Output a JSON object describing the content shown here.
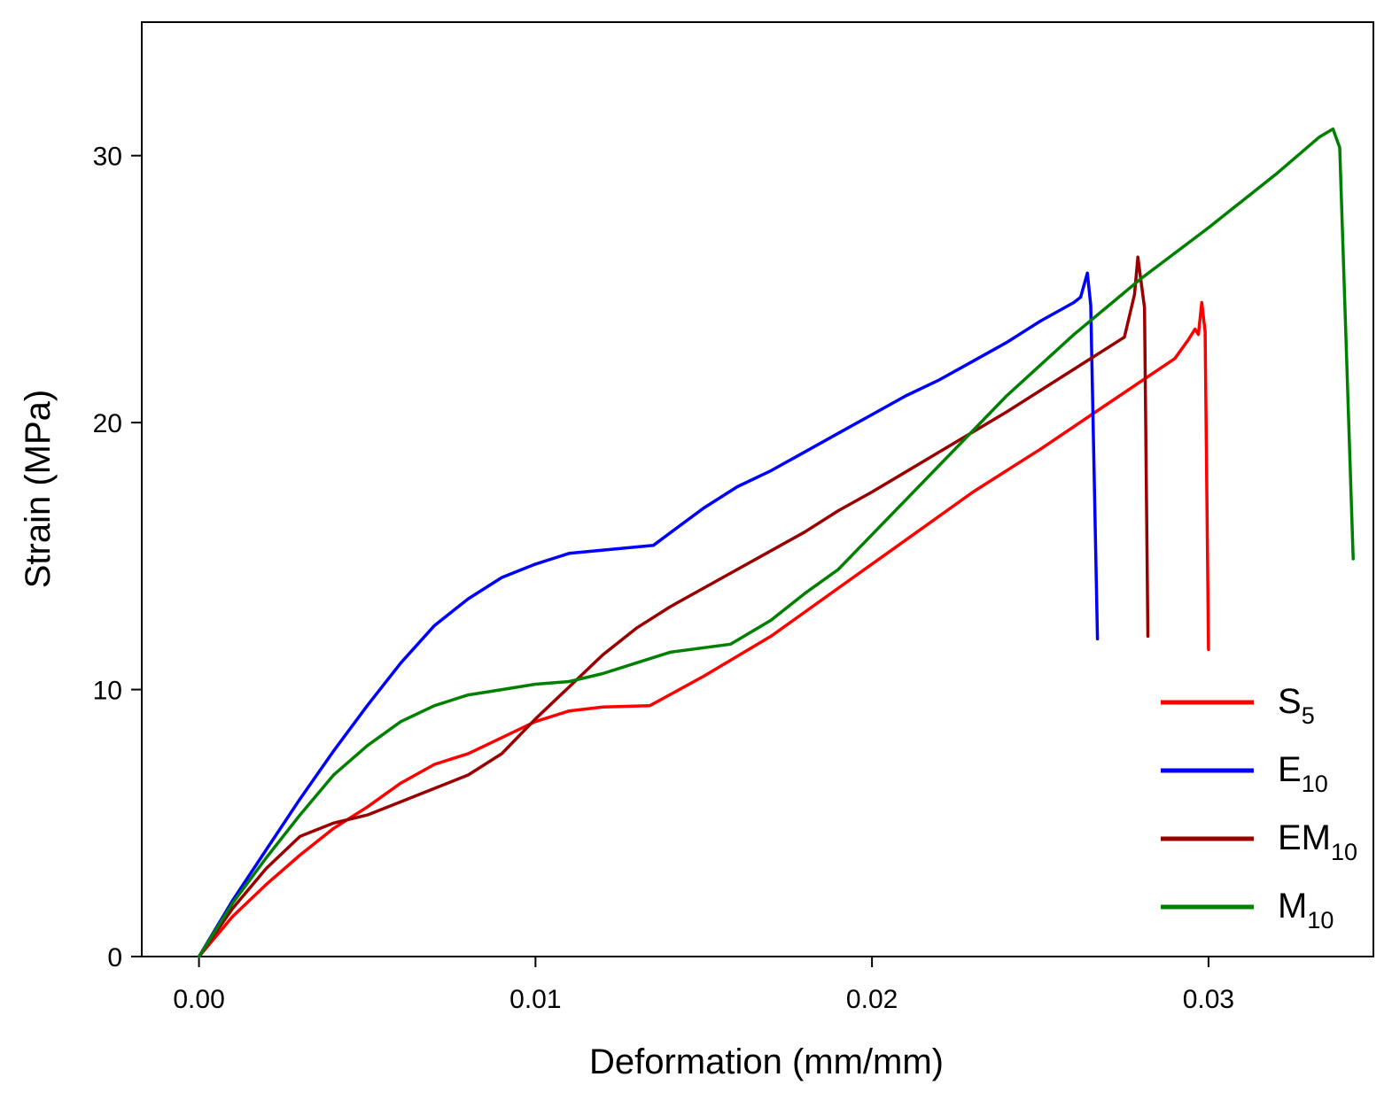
{
  "chart_data": {
    "type": "line",
    "title": "",
    "xlabel": "Deformation (mm/mm)",
    "ylabel": "Strain (MPa)",
    "xlim": [
      -0.0017,
      0.0349
    ],
    "ylim": [
      0,
      35
    ],
    "xticks": [
      0.0,
      0.01,
      0.02,
      0.03
    ],
    "xtick_labels": [
      "0.00",
      "0.01",
      "0.02",
      "0.03"
    ],
    "yticks": [
      0,
      10,
      20,
      30
    ],
    "ytick_labels": [
      "0",
      "10",
      "20",
      "30"
    ],
    "grid": false,
    "legend_position": "bottom-right",
    "series": [
      {
        "name": "S5",
        "base": "S",
        "sub": "5",
        "color": "#ff0000",
        "width": 3.5,
        "points": [
          [
            0,
            0
          ],
          [
            0.001,
            1.5
          ],
          [
            0.002,
            2.7
          ],
          [
            0.003,
            3.8
          ],
          [
            0.004,
            4.8
          ],
          [
            0.005,
            5.6
          ],
          [
            0.006,
            6.5
          ],
          [
            0.007,
            7.2
          ],
          [
            0.008,
            7.6
          ],
          [
            0.009,
            8.2
          ],
          [
            0.01,
            8.8
          ],
          [
            0.011,
            9.2
          ],
          [
            0.012,
            9.35
          ],
          [
            0.0134,
            9.4
          ],
          [
            0.015,
            10.5
          ],
          [
            0.017,
            12.0
          ],
          [
            0.019,
            13.8
          ],
          [
            0.021,
            15.6
          ],
          [
            0.023,
            17.4
          ],
          [
            0.025,
            19.0
          ],
          [
            0.027,
            20.7
          ],
          [
            0.029,
            22.4
          ],
          [
            0.0294,
            23.1
          ],
          [
            0.0296,
            23.5
          ],
          [
            0.0297,
            23.3
          ],
          [
            0.0298,
            24.5
          ],
          [
            0.0299,
            23.4
          ],
          [
            0.03,
            11.5
          ]
        ]
      },
      {
        "name": "E10",
        "base": "E",
        "sub": "10",
        "color": "#0000ff",
        "width": 3.5,
        "points": [
          [
            0,
            0
          ],
          [
            0.001,
            2.1
          ],
          [
            0.002,
            4.0
          ],
          [
            0.003,
            5.9
          ],
          [
            0.004,
            7.7
          ],
          [
            0.005,
            9.4
          ],
          [
            0.006,
            11.0
          ],
          [
            0.007,
            12.4
          ],
          [
            0.008,
            13.4
          ],
          [
            0.009,
            14.2
          ],
          [
            0.01,
            14.7
          ],
          [
            0.011,
            15.1
          ],
          [
            0.0135,
            15.4
          ],
          [
            0.015,
            16.8
          ],
          [
            0.016,
            17.6
          ],
          [
            0.017,
            18.2
          ],
          [
            0.018,
            18.9
          ],
          [
            0.019,
            19.6
          ],
          [
            0.02,
            20.3
          ],
          [
            0.021,
            21.0
          ],
          [
            0.022,
            21.6
          ],
          [
            0.023,
            22.3
          ],
          [
            0.024,
            23.0
          ],
          [
            0.025,
            23.8
          ],
          [
            0.026,
            24.5
          ],
          [
            0.0262,
            24.7
          ],
          [
            0.0264,
            25.6
          ],
          [
            0.0265,
            24.4
          ],
          [
            0.0267,
            11.9
          ]
        ]
      },
      {
        "name": "EM10",
        "base": "EM",
        "sub": "10",
        "color": "#990000",
        "width": 3.5,
        "points": [
          [
            0,
            0
          ],
          [
            0.001,
            1.8
          ],
          [
            0.002,
            3.3
          ],
          [
            0.003,
            4.5
          ],
          [
            0.004,
            5.0
          ],
          [
            0.005,
            5.3
          ],
          [
            0.006,
            5.8
          ],
          [
            0.007,
            6.3
          ],
          [
            0.008,
            6.8
          ],
          [
            0.009,
            7.6
          ],
          [
            0.01,
            8.9
          ],
          [
            0.011,
            10.1
          ],
          [
            0.012,
            11.3
          ],
          [
            0.013,
            12.3
          ],
          [
            0.014,
            13.1
          ],
          [
            0.015,
            13.8
          ],
          [
            0.016,
            14.5
          ],
          [
            0.017,
            15.2
          ],
          [
            0.018,
            15.9
          ],
          [
            0.019,
            16.7
          ],
          [
            0.02,
            17.4
          ],
          [
            0.022,
            18.9
          ],
          [
            0.024,
            20.4
          ],
          [
            0.026,
            22.0
          ],
          [
            0.0275,
            23.2
          ],
          [
            0.0278,
            24.8
          ],
          [
            0.0279,
            26.2
          ],
          [
            0.0281,
            24.3
          ],
          [
            0.0282,
            12.0
          ]
        ]
      },
      {
        "name": "M10",
        "base": "M",
        "sub": "10",
        "color": "#008000",
        "width": 3.5,
        "points": [
          [
            0,
            0
          ],
          [
            0.001,
            2.0
          ],
          [
            0.002,
            3.7
          ],
          [
            0.003,
            5.3
          ],
          [
            0.004,
            6.8
          ],
          [
            0.005,
            7.9
          ],
          [
            0.006,
            8.8
          ],
          [
            0.007,
            9.4
          ],
          [
            0.008,
            9.8
          ],
          [
            0.009,
            10.0
          ],
          [
            0.01,
            10.2
          ],
          [
            0.011,
            10.3
          ],
          [
            0.012,
            10.6
          ],
          [
            0.013,
            11.0
          ],
          [
            0.014,
            11.4
          ],
          [
            0.0158,
            11.7
          ],
          [
            0.017,
            12.6
          ],
          [
            0.018,
            13.6
          ],
          [
            0.019,
            14.5
          ],
          [
            0.02,
            15.8
          ],
          [
            0.022,
            18.4
          ],
          [
            0.024,
            21.0
          ],
          [
            0.026,
            23.3
          ],
          [
            0.028,
            25.4
          ],
          [
            0.03,
            27.3
          ],
          [
            0.032,
            29.3
          ],
          [
            0.0333,
            30.7
          ],
          [
            0.0337,
            31.0
          ],
          [
            0.0339,
            30.3
          ],
          [
            0.0343,
            14.9
          ]
        ]
      }
    ]
  }
}
